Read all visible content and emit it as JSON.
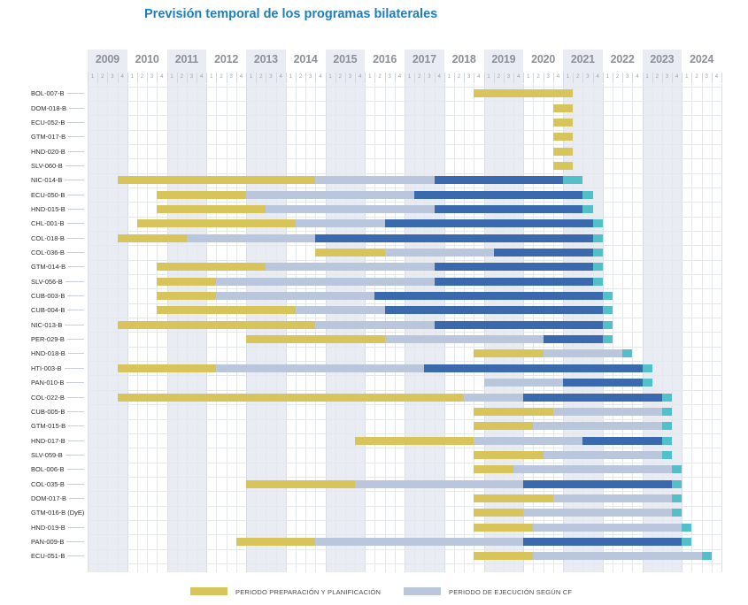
{
  "title": "Previsión temporal de los programas bilaterales",
  "chart_data": {
    "type": "gantt",
    "title": "Previsión temporal de los programas bilaterales",
    "x_axis": {
      "unit": "quarter",
      "start": "2009Q1",
      "end": "2024Q4"
    },
    "years": [
      "2009",
      "2010",
      "2011",
      "2012",
      "2013",
      "2014",
      "2015",
      "2016",
      "2017",
      "2018",
      "2019",
      "2020",
      "2021",
      "2022",
      "2023",
      "2024"
    ],
    "quarter_labels": [
      "1",
      "2",
      "3",
      "4"
    ],
    "legend": [
      {
        "id": "prep",
        "label": "PERIODO PREPARACIÓN Y PLANIFICACIÓN",
        "color": "#d7c55c"
      },
      {
        "id": "cf",
        "label": "PERIODO DE EJECUCIÓN SEGÚN CF",
        "color": "#b9c6db"
      }
    ],
    "segment_colors": {
      "prep": "#d7c55c",
      "cf": "#b9c6db",
      "exec": "#3a69ae",
      "end": "#53bfc8"
    },
    "rows": [
      {
        "label": "BOL-007-B",
        "segments": [
          [
            "prep",
            "2018Q4",
            "2021Q1"
          ]
        ]
      },
      {
        "label": "DOM-018-B",
        "segments": [
          [
            "prep",
            "2020Q4",
            "2021Q1"
          ]
        ]
      },
      {
        "label": "ECU-052-B",
        "segments": [
          [
            "prep",
            "2020Q4",
            "2021Q1"
          ]
        ]
      },
      {
        "label": "GTM-017-B",
        "segments": [
          [
            "prep",
            "2020Q4",
            "2021Q1"
          ]
        ]
      },
      {
        "label": "HND-020-B",
        "segments": [
          [
            "prep",
            "2020Q4",
            "2021Q1"
          ]
        ]
      },
      {
        "label": "SLV-060-B",
        "segments": [
          [
            "prep",
            "2020Q4",
            "2021Q1"
          ]
        ]
      },
      {
        "label": "NIC-014-B",
        "segments": [
          [
            "prep",
            "2009Q4",
            "2014Q3"
          ],
          [
            "cf",
            "2014Q4",
            "2017Q3"
          ],
          [
            "exec",
            "2017Q4",
            "2020Q4"
          ],
          [
            "end",
            "2021Q1",
            "2021Q2"
          ]
        ]
      },
      {
        "label": "ECU-050-B",
        "segments": [
          [
            "prep",
            "2010Q4",
            "2012Q4"
          ],
          [
            "cf",
            "2013Q1",
            "2017Q1"
          ],
          [
            "exec",
            "2017Q2",
            "2021Q2"
          ],
          [
            "end",
            "2021Q3",
            "2021Q3"
          ]
        ]
      },
      {
        "label": "HND-015-B",
        "segments": [
          [
            "prep",
            "2010Q4",
            "2013Q2"
          ],
          [
            "cf",
            "2013Q3",
            "2017Q3"
          ],
          [
            "exec",
            "2017Q4",
            "2021Q2"
          ],
          [
            "end",
            "2021Q3",
            "2021Q3"
          ]
        ]
      },
      {
        "label": "CHL-001-B",
        "segments": [
          [
            "prep",
            "2010Q2",
            "2014Q1"
          ],
          [
            "cf",
            "2014Q2",
            "2016Q2"
          ],
          [
            "exec",
            "2016Q3",
            "2021Q3"
          ],
          [
            "end",
            "2021Q4",
            "2021Q4"
          ]
        ]
      },
      {
        "label": "COL-018-B",
        "segments": [
          [
            "prep",
            "2009Q4",
            "2011Q2"
          ],
          [
            "cf",
            "2011Q3",
            "2014Q3"
          ],
          [
            "exec",
            "2014Q4",
            "2021Q3"
          ],
          [
            "end",
            "2021Q4",
            "2021Q4"
          ]
        ]
      },
      {
        "label": "COL-036-B",
        "segments": [
          [
            "prep",
            "2014Q4",
            "2016Q2"
          ],
          [
            "cf",
            "2016Q3",
            "2019Q1"
          ],
          [
            "exec",
            "2019Q2",
            "2021Q3"
          ],
          [
            "end",
            "2021Q4",
            "2021Q4"
          ]
        ]
      },
      {
        "label": "GTM-014-B",
        "segments": [
          [
            "prep",
            "2010Q4",
            "2013Q2"
          ],
          [
            "cf",
            "2013Q3",
            "2017Q3"
          ],
          [
            "exec",
            "2017Q4",
            "2021Q3"
          ],
          [
            "end",
            "2021Q4",
            "2021Q4"
          ]
        ]
      },
      {
        "label": "SLV-056-B",
        "segments": [
          [
            "prep",
            "2010Q4",
            "2012Q1"
          ],
          [
            "cf",
            "2012Q2",
            "2017Q3"
          ],
          [
            "exec",
            "2017Q4",
            "2021Q3"
          ],
          [
            "end",
            "2021Q4",
            "2021Q4"
          ]
        ]
      },
      {
        "label": "CUB-003-B",
        "segments": [
          [
            "prep",
            "2010Q4",
            "2012Q1"
          ],
          [
            "cf",
            "2012Q2",
            "2016Q1"
          ],
          [
            "exec",
            "2016Q2",
            "2021Q4"
          ],
          [
            "end",
            "2022Q1",
            "2022Q1"
          ]
        ]
      },
      {
        "label": "CUB-004-B",
        "segments": [
          [
            "prep",
            "2010Q4",
            "2014Q1"
          ],
          [
            "cf",
            "2014Q2",
            "2016Q2"
          ],
          [
            "exec",
            "2016Q3",
            "2021Q4"
          ],
          [
            "end",
            "2022Q1",
            "2022Q1"
          ]
        ]
      },
      {
        "label": "NIC-013-B",
        "segments": [
          [
            "prep",
            "2009Q4",
            "2014Q3"
          ],
          [
            "cf",
            "2014Q4",
            "2017Q3"
          ],
          [
            "exec",
            "2017Q4",
            "2021Q4"
          ],
          [
            "end",
            "2022Q1",
            "2022Q1"
          ]
        ]
      },
      {
        "label": "PER-029-B",
        "segments": [
          [
            "prep",
            "2013Q1",
            "2016Q2"
          ],
          [
            "cf",
            "2016Q3",
            "2020Q2"
          ],
          [
            "exec",
            "2020Q3",
            "2021Q4"
          ],
          [
            "end",
            "2022Q1",
            "2022Q1"
          ]
        ]
      },
      {
        "label": "HND-018-B",
        "segments": [
          [
            "prep",
            "2018Q4",
            "2020Q2"
          ],
          [
            "cf",
            "2020Q3",
            "2022Q2"
          ],
          [
            "end",
            "2022Q3",
            "2022Q3"
          ]
        ]
      },
      {
        "label": "HTI-003-B",
        "segments": [
          [
            "prep",
            "2009Q4",
            "2012Q1"
          ],
          [
            "cf",
            "2012Q2",
            "2017Q2"
          ],
          [
            "exec",
            "2017Q3",
            "2022Q4"
          ],
          [
            "end",
            "2023Q1",
            "2023Q1"
          ]
        ]
      },
      {
        "label": "PAN-010-B",
        "segments": [
          [
            "cf",
            "2019Q1",
            "2020Q4"
          ],
          [
            "exec",
            "2021Q1",
            "2022Q4"
          ],
          [
            "end",
            "2023Q1",
            "2023Q1"
          ]
        ]
      },
      {
        "label": "COL-022-B",
        "segments": [
          [
            "prep",
            "2009Q4",
            "2018Q2"
          ],
          [
            "cf",
            "2018Q3",
            "2019Q4"
          ],
          [
            "exec",
            "2020Q1",
            "2023Q2"
          ],
          [
            "end",
            "2023Q3",
            "2023Q3"
          ]
        ]
      },
      {
        "label": "CUB-005-B",
        "segments": [
          [
            "prep",
            "2018Q4",
            "2020Q3"
          ],
          [
            "cf",
            "2020Q4",
            "2023Q2"
          ],
          [
            "end",
            "2023Q3",
            "2023Q3"
          ]
        ]
      },
      {
        "label": "GTM-015-B",
        "segments": [
          [
            "prep",
            "2018Q4",
            "2020Q1"
          ],
          [
            "cf",
            "2020Q2",
            "2023Q2"
          ],
          [
            "end",
            "2023Q3",
            "2023Q3"
          ]
        ]
      },
      {
        "label": "HND-017-B",
        "segments": [
          [
            "prep",
            "2015Q4",
            "2018Q3"
          ],
          [
            "cf",
            "2018Q4",
            "2021Q2"
          ],
          [
            "exec",
            "2021Q3",
            "2023Q2"
          ],
          [
            "end",
            "2023Q3",
            "2023Q3"
          ]
        ]
      },
      {
        "label": "SLV-059-B",
        "segments": [
          [
            "prep",
            "2018Q4",
            "2020Q2"
          ],
          [
            "cf",
            "2020Q3",
            "2023Q2"
          ],
          [
            "end",
            "2023Q3",
            "2023Q3"
          ]
        ]
      },
      {
        "label": "BOL-006-B",
        "segments": [
          [
            "prep",
            "2018Q4",
            "2019Q3"
          ],
          [
            "cf",
            "2019Q4",
            "2023Q3"
          ],
          [
            "end",
            "2023Q4",
            "2023Q4"
          ]
        ]
      },
      {
        "label": "COL-035-B",
        "segments": [
          [
            "prep",
            "2013Q1",
            "2015Q3"
          ],
          [
            "cf",
            "2015Q4",
            "2019Q4"
          ],
          [
            "exec",
            "2020Q1",
            "2023Q3"
          ],
          [
            "end",
            "2023Q4",
            "2023Q4"
          ]
        ]
      },
      {
        "label": "DOM-017-B",
        "segments": [
          [
            "prep",
            "2018Q4",
            "2020Q3"
          ],
          [
            "cf",
            "2020Q4",
            "2023Q3"
          ],
          [
            "end",
            "2023Q4",
            "2023Q4"
          ]
        ]
      },
      {
        "label": "GTM-016-B (DyE)",
        "segments": [
          [
            "prep",
            "2018Q4",
            "2019Q4"
          ],
          [
            "cf",
            "2020Q1",
            "2023Q3"
          ],
          [
            "end",
            "2023Q4",
            "2023Q4"
          ]
        ]
      },
      {
        "label": "HND-019-B",
        "segments": [
          [
            "prep",
            "2018Q4",
            "2020Q1"
          ],
          [
            "cf",
            "2020Q2",
            "2023Q4"
          ],
          [
            "end",
            "2024Q1",
            "2024Q1"
          ]
        ]
      },
      {
        "label": "PAN-009-B",
        "segments": [
          [
            "prep",
            "2012Q4",
            "2014Q3"
          ],
          [
            "cf",
            "2014Q4",
            "2019Q4"
          ],
          [
            "exec",
            "2020Q1",
            "2023Q4"
          ],
          [
            "end",
            "2024Q1",
            "2024Q1"
          ]
        ]
      },
      {
        "label": "ECU-051-B",
        "segments": [
          [
            "prep",
            "2018Q4",
            "2020Q1"
          ],
          [
            "cf",
            "2020Q2",
            "2024Q2"
          ],
          [
            "end",
            "2024Q3",
            "2024Q3"
          ]
        ]
      }
    ]
  }
}
